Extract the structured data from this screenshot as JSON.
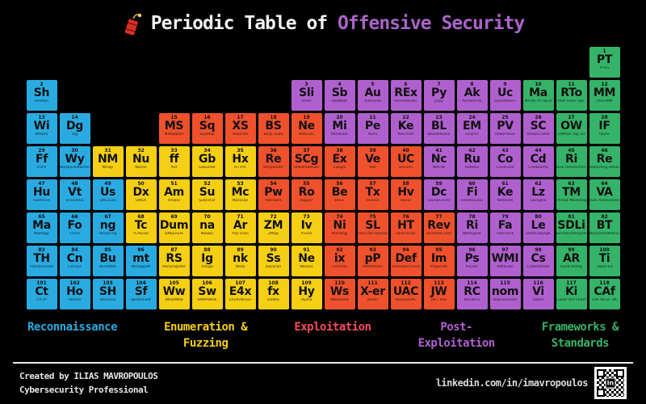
{
  "title": {
    "prefix": "Periodic Table of",
    "highlight": "Offensive Security"
  },
  "categories": [
    {
      "id": "recon",
      "label": "Reconnaissance",
      "color": "#29ABE2"
    },
    {
      "id": "enum",
      "label": "Enumeration &\nFuzzing",
      "color": "#F5CF13"
    },
    {
      "id": "exploit",
      "label": "Exploitation",
      "color": "#F0512D",
      "legend_color": "#FB4B5C"
    },
    {
      "id": "post",
      "label": "Post-\nExploitation",
      "color": "#B060CE"
    },
    {
      "id": "framework",
      "label": "Frameworks &\nStandards",
      "color": "#35B469"
    }
  ],
  "table": {
    "cells": [
      {
        "n": 1,
        "sym": "PT",
        "name": "PTES",
        "cat": "framework",
        "row": 1,
        "col": 18
      },
      {
        "n": 2,
        "sym": "Sh",
        "name": "Shodan",
        "cat": "recon",
        "row": 2,
        "col": 1
      },
      {
        "n": 3,
        "sym": "Sli",
        "name": "Sliver",
        "cat": "post",
        "row": 2,
        "col": 9
      },
      {
        "n": 4,
        "sym": "Sb",
        "name": "Seatbelt",
        "cat": "post",
        "row": 2,
        "col": 10
      },
      {
        "n": 5,
        "sym": "Au",
        "name": "Autoruns",
        "cat": "post",
        "row": 2,
        "col": 11
      },
      {
        "n": 6,
        "sym": "REx",
        "name": "RemoteExec",
        "cat": "post",
        "row": 2,
        "col": 12
      },
      {
        "n": 7,
        "sym": "Py",
        "name": "pspy",
        "cat": "post",
        "row": 2,
        "col": 13
      },
      {
        "n": 8,
        "sym": "Ak",
        "name": "AccessChk",
        "cat": "post",
        "row": 2,
        "col": 14
      },
      {
        "n": 9,
        "sym": "Uc",
        "name": "UploadServ",
        "cat": "post",
        "row": 2,
        "col": 15
      },
      {
        "n": 10,
        "sym": "Ma",
        "name": "MITRE ATT&CK",
        "cat": "framework",
        "row": 2,
        "col": 16
      },
      {
        "n": 11,
        "sym": "RTo",
        "name": "Red Team Ops",
        "cat": "framework",
        "row": 2,
        "col": 17
      },
      {
        "n": 12,
        "sym": "MM",
        "name": "OSSTMM",
        "cat": "framework",
        "row": 2,
        "col": 18
      },
      {
        "n": 13,
        "sym": "Wi",
        "name": "WHOIS",
        "cat": "recon",
        "row": 3,
        "col": 1
      },
      {
        "n": 14,
        "sym": "Dg",
        "name": "dig",
        "cat": "recon",
        "row": 3,
        "col": 2
      },
      {
        "n": 15,
        "sym": "MS",
        "name": "Metasploit",
        "cat": "exploit",
        "row": 3,
        "col": 5
      },
      {
        "n": 16,
        "sym": "Sq",
        "name": "SQLMap",
        "cat": "exploit",
        "row": 3,
        "col": 6
      },
      {
        "n": 17,
        "sym": "XS",
        "name": "XSStrike",
        "cat": "exploit",
        "row": 3,
        "col": 7
      },
      {
        "n": 18,
        "sym": "BS",
        "name": "Burp Suite",
        "cat": "exploit",
        "row": 3,
        "col": 8
      },
      {
        "n": 19,
        "sym": "Ne",
        "name": "NetExec",
        "cat": "exploit",
        "row": 3,
        "col": 9
      },
      {
        "n": 20,
        "sym": "Mi",
        "name": "Mimikatz",
        "cat": "post",
        "row": 3,
        "col": 10
      },
      {
        "n": 21,
        "sym": "Pe",
        "name": "PEAS",
        "cat": "post",
        "row": 3,
        "col": 11
      },
      {
        "n": 22,
        "sym": "Ke",
        "name": "KeeThief",
        "cat": "post",
        "row": 3,
        "col": 12
      },
      {
        "n": 23,
        "sym": "BL",
        "name": "BloodHound",
        "cat": "post",
        "row": 3,
        "col": 13
      },
      {
        "n": 24,
        "sym": "EM",
        "name": "Empire",
        "cat": "post",
        "row": 3,
        "col": 14
      },
      {
        "n": 25,
        "sym": "PV",
        "name": "PowerView",
        "cat": "post",
        "row": 3,
        "col": 15
      },
      {
        "n": 26,
        "sym": "SC",
        "name": "SharpCradle",
        "cat": "post",
        "row": 3,
        "col": 16
      },
      {
        "n": 27,
        "sym": "OW",
        "name": "OWASP Top 10",
        "cat": "framework",
        "row": 3,
        "col": 17
      },
      {
        "n": 28,
        "sym": "IF",
        "name": "ISSAF",
        "cat": "framework",
        "row": 3,
        "col": 18
      },
      {
        "n": 29,
        "sym": "Ff",
        "name": "FOFA",
        "cat": "recon",
        "row": 4,
        "col": 1
      },
      {
        "n": 30,
        "sym": "Wy",
        "name": "WaybackMachine",
        "cat": "recon",
        "row": 4,
        "col": 2
      },
      {
        "n": 31,
        "sym": "NM",
        "name": "Nmap",
        "cat": "enum",
        "row": 4,
        "col": 3
      },
      {
        "n": 32,
        "sym": "Nu",
        "name": "Nuclei",
        "cat": "enum",
        "row": 4,
        "col": 4
      },
      {
        "n": 33,
        "sym": "ff",
        "name": "ffuf",
        "cat": "enum",
        "row": 4,
        "col": 5
      },
      {
        "n": 34,
        "sym": "Gb",
        "name": "Gobuster",
        "cat": "enum",
        "row": 4,
        "col": 6
      },
      {
        "n": 35,
        "sym": "Hx",
        "name": "HTTPX",
        "cat": "enum",
        "row": 4,
        "col": 7
      },
      {
        "n": 36,
        "sym": "Re",
        "name": "Responder",
        "cat": "exploit",
        "row": 4,
        "col": 8
      },
      {
        "n": 37,
        "sym": "SCg",
        "name": "ShellcodeGen",
        "cat": "exploit",
        "row": 4,
        "col": 9
      },
      {
        "n": 38,
        "sym": "Ex",
        "name": "Exegol",
        "cat": "exploit",
        "row": 4,
        "col": 10
      },
      {
        "n": 39,
        "sym": "Ve",
        "name": "Veil",
        "cat": "exploit",
        "row": 4,
        "col": 11
      },
      {
        "n": 40,
        "sym": "UC",
        "name": "Unicorn",
        "cat": "exploit",
        "row": 4,
        "col": 12
      },
      {
        "n": 41,
        "sym": "Nc",
        "name": "Netcat",
        "cat": "post",
        "row": 4,
        "col": 13
      },
      {
        "n": 42,
        "sym": "Ru",
        "name": "Rubeus",
        "cat": "post",
        "row": 4,
        "col": 14
      },
      {
        "n": 43,
        "sym": "Co",
        "name": "Covenant",
        "cat": "post",
        "row": 4,
        "col": 15
      },
      {
        "n": 44,
        "sym": "Cd",
        "name": "CredDump",
        "cat": "post",
        "row": 4,
        "col": 16
      },
      {
        "n": 45,
        "sym": "Ri",
        "name": "Risk Assessment",
        "cat": "framework",
        "row": 4,
        "col": 17
      },
      {
        "n": 46,
        "sym": "Re",
        "name": "Reporting Stndrds",
        "cat": "framework",
        "row": 4,
        "col": 18
      },
      {
        "n": 47,
        "sym": "Hu",
        "name": "Hunter.io",
        "cat": "recon",
        "row": 5,
        "col": 1
      },
      {
        "n": 48,
        "sym": "Vt",
        "name": "VirusTotal",
        "cat": "recon",
        "row": 5,
        "col": 2
      },
      {
        "n": 49,
        "sym": "Us",
        "name": "URLScan",
        "cat": "recon",
        "row": 5,
        "col": 3
      },
      {
        "n": 50,
        "sym": "Dx",
        "name": "DNSX",
        "cat": "enum",
        "row": 5,
        "col": 4
      },
      {
        "n": 51,
        "sym": "Am",
        "name": "Amass",
        "cat": "enum",
        "row": 5,
        "col": 5
      },
      {
        "n": 52,
        "sym": "Su",
        "name": "Sublist3r",
        "cat": "enum",
        "row": 5,
        "col": 6
      },
      {
        "n": 53,
        "sym": "Mc",
        "name": "Masscan",
        "cat": "enum",
        "row": 5,
        "col": 7
      },
      {
        "n": 54,
        "sym": "Pw",
        "name": "PwnTools",
        "cat": "exploit",
        "row": 5,
        "col": 8
      },
      {
        "n": 55,
        "sym": "Ro",
        "name": "Ropper",
        "cat": "exploit",
        "row": 5,
        "col": 9
      },
      {
        "n": 56,
        "sym": "Be",
        "name": "BeEF",
        "cat": "exploit",
        "row": 5,
        "col": 10
      },
      {
        "n": 57,
        "sym": "Tx",
        "name": "Toxssin",
        "cat": "exploit",
        "row": 5,
        "col": 11
      },
      {
        "n": 58,
        "sym": "Hv",
        "name": "Havoc",
        "cat": "exploit",
        "row": 5,
        "col": 12
      },
      {
        "n": 59,
        "sym": "Dc",
        "name": "DumpCreds",
        "cat": "post",
        "row": 5,
        "col": 13
      },
      {
        "n": 60,
        "sym": "Fi",
        "name": "FilelessExec",
        "cat": "post",
        "row": 5,
        "col": 14
      },
      {
        "n": 61,
        "sym": "Ke",
        "name": "Kerbrute",
        "cat": "post",
        "row": 5,
        "col": 15
      },
      {
        "n": 62,
        "sym": "Lz",
        "name": "LaZagne",
        "cat": "post",
        "row": 5,
        "col": 16
      },
      {
        "n": 63,
        "sym": "TM",
        "name": "Threat Modeling",
        "cat": "framework",
        "row": 5,
        "col": 17
      },
      {
        "n": 64,
        "sym": "VA",
        "name": "Vuln Assessment",
        "cat": "framework",
        "row": 5,
        "col": 18
      },
      {
        "n": 65,
        "sym": "Ma",
        "name": "Maltego",
        "cat": "recon",
        "row": 6,
        "col": 1
      },
      {
        "n": 66,
        "sym": "Fo",
        "name": "FOCA",
        "cat": "recon",
        "row": 6,
        "col": 2
      },
      {
        "n": 67,
        "sym": "ng",
        "name": "Recon-ng",
        "cat": "recon",
        "row": 6,
        "col": 3
      },
      {
        "n": 68,
        "sym": "Tc",
        "name": "TCPScan",
        "cat": "enum",
        "row": 6,
        "col": 4
      },
      {
        "n": 69,
        "sym": "Dum",
        "name": "DNSEnum",
        "cat": "enum",
        "row": 6,
        "col": 5
      },
      {
        "n": 70,
        "sym": "na",
        "name": "Naabu",
        "cat": "enum",
        "row": 6,
        "col": 6
      },
      {
        "n": 71,
        "sym": "Ar",
        "name": "Arp-scan",
        "cat": "enum",
        "row": 6,
        "col": 7
      },
      {
        "n": 72,
        "sym": "ZM",
        "name": "ZMap",
        "cat": "enum",
        "row": 6,
        "col": 8
      },
      {
        "n": 73,
        "sym": "Iv",
        "name": "Invicti",
        "cat": "enum",
        "row": 6,
        "col": 9
      },
      {
        "n": 74,
        "sym": "Ni",
        "name": "Nishang",
        "cat": "exploit",
        "row": 6,
        "col": 10
      },
      {
        "n": 75,
        "sym": "SL",
        "name": "SecLists Payloads",
        "cat": "exploit",
        "row": 6,
        "col": 11
      },
      {
        "n": 76,
        "sym": "HT",
        "name": "HackTricks",
        "cat": "exploit",
        "row": 6,
        "col": 12
      },
      {
        "n": 77,
        "sym": "Rev",
        "name": "revshells.com",
        "cat": "exploit",
        "row": 6,
        "col": 13
      },
      {
        "n": 78,
        "sym": "Ri",
        "name": "NetRipper",
        "cat": "post",
        "row": 6,
        "col": 14
      },
      {
        "n": 79,
        "sym": "Fa",
        "name": "FastTrack",
        "cat": "post",
        "row": 6,
        "col": 15
      },
      {
        "n": 80,
        "sym": "Le",
        "name": "DataLeakage",
        "cat": "post",
        "row": 6,
        "col": 16
      },
      {
        "n": 81,
        "sym": "SDLi",
        "name": "SecDevLifecycle",
        "cat": "framework",
        "row": 6,
        "col": 17
      },
      {
        "n": 82,
        "sym": "BT",
        "name": "BlueTeamMatrix",
        "cat": "framework",
        "row": 6,
        "col": 18
      },
      {
        "n": 83,
        "sym": "TH",
        "name": "TheHarvester",
        "cat": "recon",
        "row": 7,
        "col": 1
      },
      {
        "n": 84,
        "sym": "Cn",
        "name": "Censys",
        "cat": "recon",
        "row": 7,
        "col": 2
      },
      {
        "n": 85,
        "sym": "Bu",
        "name": "BuiltWith",
        "cat": "recon",
        "row": 7,
        "col": 3
      },
      {
        "n": 86,
        "sym": "mt",
        "name": "Metagoofil",
        "cat": "recon",
        "row": 7,
        "col": 4
      },
      {
        "n": 87,
        "sym": "RS",
        "name": "ReconSpider",
        "cat": "enum",
        "row": 7,
        "col": 5
      },
      {
        "n": 88,
        "sym": "Ig",
        "name": "Infoga",
        "cat": "enum",
        "row": 7,
        "col": 6
      },
      {
        "n": 89,
        "sym": "nk",
        "name": "Nikto",
        "cat": "enum",
        "row": 7,
        "col": 7
      },
      {
        "n": 90,
        "sym": "Ss",
        "name": "SSLScan",
        "cat": "enum",
        "row": 7,
        "col": 8
      },
      {
        "n": 91,
        "sym": "Ne",
        "name": "Nessus",
        "cat": "enum",
        "row": 7,
        "col": 9
      },
      {
        "n": 92,
        "sym": "ix",
        "name": "Commix",
        "cat": "exploit",
        "row": 7,
        "col": 10
      },
      {
        "n": 93,
        "sym": "pP",
        "name": "PetitPotam",
        "cat": "exploit",
        "row": 7,
        "col": 11
      },
      {
        "n": 94,
        "sym": "Def",
        "name": "DefenderCheck",
        "cat": "exploit",
        "row": 7,
        "col": 12
      },
      {
        "n": 95,
        "sym": "Im",
        "name": "Impacket",
        "cat": "exploit",
        "row": 7,
        "col": 13
      },
      {
        "n": 96,
        "sym": "Ps",
        "name": "PsExec",
        "cat": "post",
        "row": 7,
        "col": 14
      },
      {
        "n": 97,
        "sym": "WMI",
        "name": "WMIExec",
        "cat": "post",
        "row": 7,
        "col": 15
      },
      {
        "n": 98,
        "sym": "Cs",
        "name": "CobaltStrike",
        "cat": "post",
        "row": 7,
        "col": 16
      },
      {
        "n": 99,
        "sym": "AR",
        "name": "Audit Ready",
        "cat": "framework",
        "row": 7,
        "col": 17
      },
      {
        "n": 100,
        "sym": "Ti",
        "name": "TIBER-EU",
        "cat": "framework",
        "row": 7,
        "col": 18
      },
      {
        "n": 101,
        "sym": "Ct",
        "name": "crt.sh",
        "cat": "recon",
        "row": 8,
        "col": 1
      },
      {
        "n": 102,
        "sym": "Ho",
        "name": "Holehe",
        "cat": "recon",
        "row": 8,
        "col": 2
      },
      {
        "n": 103,
        "sym": "SH",
        "name": "Sherlock",
        "cat": "recon",
        "row": 8,
        "col": 3
      },
      {
        "n": 104,
        "sym": "Sf",
        "name": "SpiderFoot",
        "cat": "recon",
        "row": 8,
        "col": 4
      },
      {
        "n": 105,
        "sym": "Ww",
        "name": "WhatWeb",
        "cat": "enum",
        "row": 8,
        "col": 5
      },
      {
        "n": 106,
        "sym": "Sw",
        "name": "SNMPWalk",
        "cat": "enum",
        "row": 8,
        "col": 6
      },
      {
        "n": 107,
        "sym": "E4x",
        "name": "Enum4linux",
        "cat": "enum",
        "row": 8,
        "col": 7
      },
      {
        "n": 108,
        "sym": "fx",
        "name": "Dalfox",
        "cat": "enum",
        "row": 8,
        "col": 8
      },
      {
        "n": 109,
        "sym": "Hy",
        "name": "Hydra",
        "cat": "enum",
        "row": 8,
        "col": 9
      },
      {
        "n": 110,
        "sym": "Ws",
        "name": "Websploit",
        "cat": "exploit",
        "row": 8,
        "col": 10
      },
      {
        "n": 111,
        "sym": "X-er",
        "name": "XSSer",
        "cat": "exploit",
        "row": 8,
        "col": 11
      },
      {
        "n": 112,
        "sym": "UAC",
        "name": "BypassUAC",
        "cat": "exploit",
        "row": 8,
        "col": 12
      },
      {
        "n": 113,
        "sym": "JW",
        "name": "JWT Tool",
        "cat": "exploit",
        "row": 8,
        "col": 13
      },
      {
        "n": 114,
        "sym": "RC",
        "name": "RunasCs",
        "cat": "post",
        "row": 8,
        "col": 14
      },
      {
        "n": 115,
        "sym": "nom",
        "name": "ldapnomnom",
        "cat": "post",
        "row": 8,
        "col": 15
      },
      {
        "n": 116,
        "sym": "Vi",
        "name": "Villain",
        "cat": "post",
        "row": 8,
        "col": 16
      },
      {
        "n": 117,
        "sym": "Ki",
        "name": "Cyber Kill Chain",
        "cat": "framework",
        "row": 8,
        "col": 17
      },
      {
        "n": 118,
        "sym": "CAf",
        "name": "CAF NCSC UK",
        "cat": "framework",
        "row": 8,
        "col": 18
      }
    ]
  },
  "footer": {
    "line1": "Created by ILIAS MAVROPOULOS",
    "line2": "Cybersecurity Professional",
    "linkedin_url": "linkedin.com/in/imavropoulos",
    "linkedin_badge": "in"
  }
}
